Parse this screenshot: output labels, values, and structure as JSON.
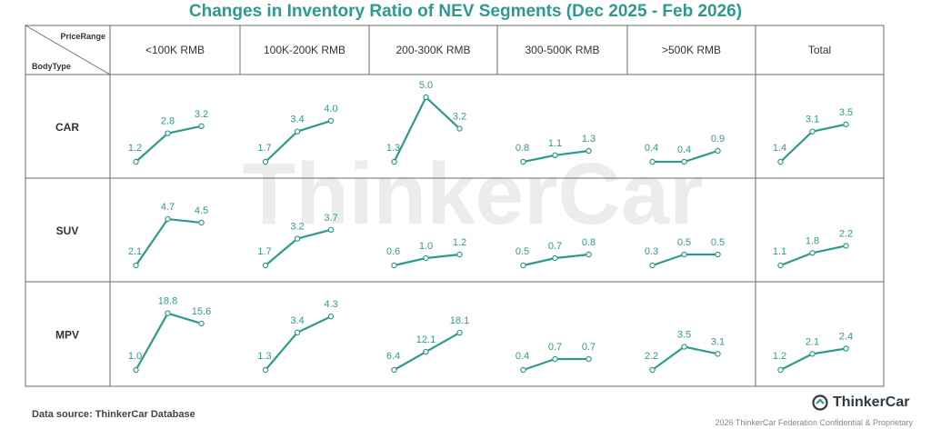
{
  "title": "Changes in Inventory Ratio of NEV Segments (Dec 2025 - Feb 2026)",
  "corner": {
    "top_label": "PriceRange",
    "bottom_label": "BodyType"
  },
  "watermark": "ThinkerCar",
  "source": "Data source: ThinkerCar Database",
  "logo_text": "ThinkerCar",
  "footnote": "2026 ThinkerCar Federation Confidential & Proprietary",
  "colors": {
    "accent": "#2e9a8e",
    "grid": "#6b6b6b",
    "text": "#333333"
  },
  "chart_data": {
    "type": "line",
    "layout": "small-multiples",
    "columns": [
      "<100K RMB",
      "100K-200K RMB",
      "200-300K RMB",
      "300-500K RMB",
      ">500K RMB",
      "Total"
    ],
    "rows": [
      "CAR",
      "SUV",
      "MPV"
    ],
    "periods": 3,
    "shared_y_scale": false,
    "cells": [
      [
        [
          1.2,
          2.8,
          3.2
        ],
        [
          1.7,
          3.4,
          4.0
        ],
        [
          1.3,
          5.0,
          3.2
        ],
        [
          0.8,
          1.1,
          1.3
        ],
        [
          0.4,
          0.4,
          0.9
        ],
        [
          1.4,
          3.1,
          3.5
        ]
      ],
      [
        [
          2.1,
          4.7,
          4.5
        ],
        [
          1.7,
          3.2,
          3.7
        ],
        [
          0.6,
          1.0,
          1.2
        ],
        [
          0.5,
          0.7,
          0.8
        ],
        [
          0.3,
          0.5,
          0.5
        ],
        [
          1.1,
          1.8,
          2.2
        ]
      ],
      [
        [
          1.0,
          18.8,
          15.6
        ],
        [
          1.3,
          3.4,
          4.3
        ],
        [
          6.4,
          12.1,
          18.1
        ],
        [
          0.4,
          0.7,
          0.7
        ],
        [
          2.2,
          3.5,
          3.1
        ],
        [
          1.2,
          2.1,
          2.4
        ]
      ]
    ]
  }
}
